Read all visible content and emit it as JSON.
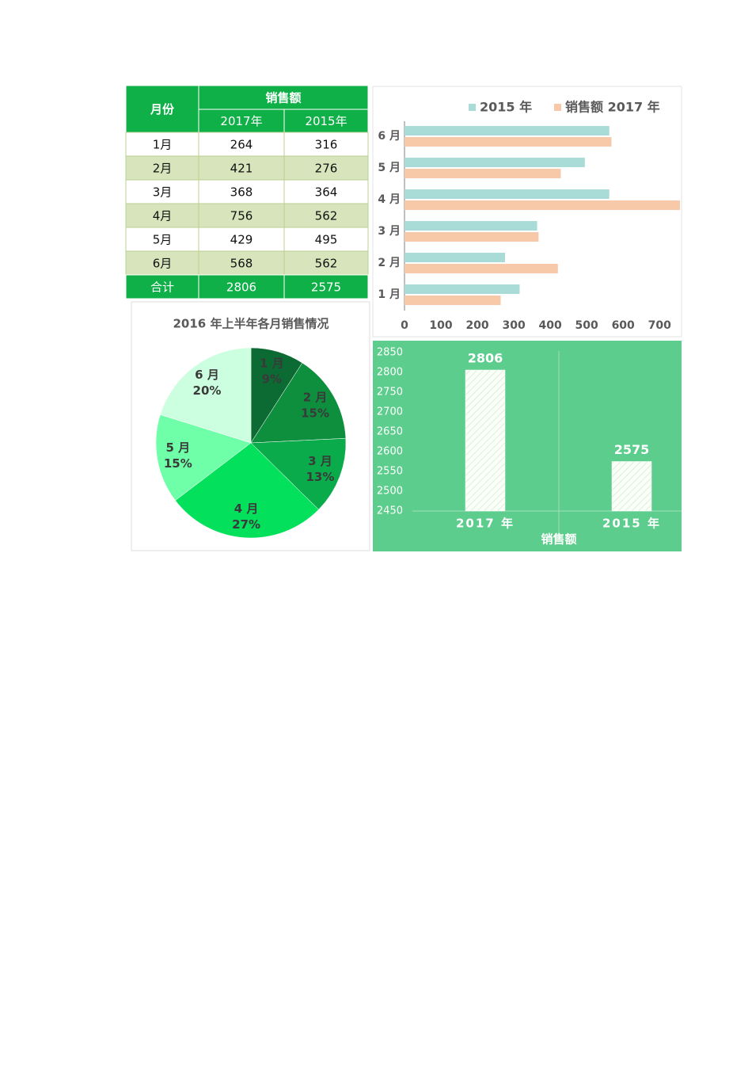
{
  "table": {
    "header": [
      "月份",
      "销售额",
      "2017年",
      "2015年"
    ],
    "rows": [
      [
        "1月",
        264,
        316
      ],
      [
        "2月",
        421,
        276
      ],
      [
        "3月",
        368,
        364
      ],
      [
        "4月",
        756,
        562
      ],
      [
        "5月",
        429,
        495
      ],
      [
        "6月",
        568,
        562
      ]
    ],
    "total": [
      "合计",
      2806,
      2575
    ]
  },
  "chart_data": [
    {
      "type": "bar",
      "orientation": "horizontal",
      "categories": [
        "1 月",
        "2 月",
        "3 月",
        "4 月",
        "5 月",
        "6 月"
      ],
      "series": [
        {
          "name": "2015 年",
          "color": "#a9dcd6",
          "values": [
            316,
            276,
            364,
            562,
            495,
            562
          ]
        },
        {
          "name": "销售额 2017 年",
          "color": "#f8c9a8",
          "values": [
            264,
            421,
            368,
            756,
            429,
            568
          ]
        }
      ],
      "xlim": [
        0,
        756
      ],
      "xticks": [
        0,
        100,
        200,
        300,
        400,
        500,
        600,
        700
      ],
      "legend": "top"
    },
    {
      "type": "pie",
      "title": "2016 年上半年各月销售情况",
      "categories": [
        "1 月",
        "2 月",
        "3 月",
        "4 月",
        "5 月",
        "6 月"
      ],
      "values": [
        9,
        15,
        13,
        27,
        15,
        20
      ],
      "value_labels": [
        "9%",
        "15%",
        "13%",
        "27%",
        "15%",
        "20%"
      ],
      "colors": [
        "#0b6b33",
        "#0e8f3e",
        "#09ab4b",
        "#02e05c",
        "#6fffa8",
        "#ccffdf"
      ]
    },
    {
      "type": "bar",
      "categories": [
        "2017 年",
        "2015 年"
      ],
      "values": [
        2806,
        2575
      ],
      "x_label": "销售额",
      "color": "#ffffff",
      "ylim": [
        2450,
        2850
      ],
      "yticks": [
        2450,
        2500,
        2550,
        2600,
        2650,
        2700,
        2750,
        2800,
        2850
      ]
    }
  ]
}
